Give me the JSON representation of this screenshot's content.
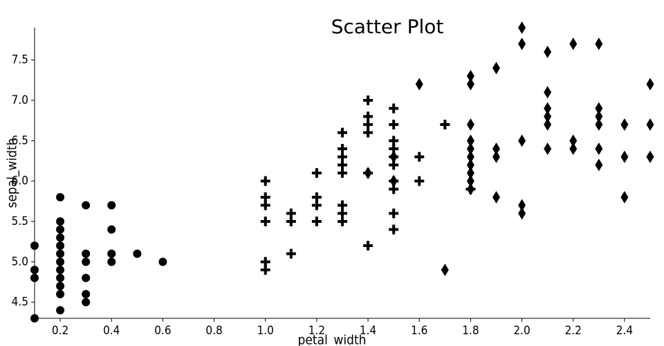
{
  "chart_data": {
    "type": "scatter",
    "title": "Scatter Plot",
    "x_label": "petal_width",
    "y_label": "sepal_width",
    "xlim": [
      0.1,
      2.5
    ],
    "xticks": [
      0.2,
      0.4,
      0.6,
      0.8,
      {
        "value": 1,
        "label": "1.0"
      },
      1.2,
      1.4,
      1.6,
      1.8,
      {
        "value": 2,
        "label": "2.0"
      },
      2.2,
      2.4
    ],
    "ylim": [
      4.3,
      7.9
    ],
    "yticks": [
      4.5,
      {
        "value": 5,
        "label": "5.0"
      },
      5.5,
      {
        "value": 6,
        "label": "6.0"
      },
      6.5,
      {
        "value": 7,
        "label": "7.0"
      },
      7.5
    ],
    "grid": false,
    "series": [
      {
        "marker": "circle",
        "color": "#000000",
        "x": [
          0.1,
          0.1,
          0.1,
          0.1,
          0.2,
          0.2,
          0.2,
          0.2,
          0.2,
          0.2,
          0.2,
          0.2,
          0.2,
          0.2,
          0.2,
          0.2,
          0.3,
          0.3,
          0.3,
          0.3,
          0.3,
          0.3,
          0.4,
          0.4,
          0.4,
          0.4,
          0.5,
          0.6
        ],
        "values": [
          4.9,
          4.8,
          4.3,
          5.2,
          5.1,
          4.9,
          4.7,
          4.6,
          5.0,
          4.4,
          5.4,
          4.8,
          5.8,
          5.2,
          5.5,
          5.3,
          4.6,
          5.1,
          5.7,
          5.0,
          4.5,
          4.8,
          5.4,
          5.7,
          5.1,
          5.0,
          5.1,
          5.0
        ]
      },
      {
        "marker": "plus",
        "color": "#000000",
        "x": [
          1.0,
          1.0,
          1.0,
          1.0,
          1.0,
          1.0,
          1.1,
          1.1,
          1.1,
          1.2,
          1.2,
          1.2,
          1.2,
          1.3,
          1.3,
          1.3,
          1.3,
          1.3,
          1.3,
          1.3,
          1.3,
          1.4,
          1.4,
          1.4,
          1.4,
          1.4,
          1.4,
          1.5,
          1.5,
          1.5,
          1.5,
          1.5,
          1.5,
          1.5,
          1.5,
          1.5,
          1.5,
          1.6,
          1.6,
          1.7,
          1.8
        ],
        "values": [
          4.9,
          5.0,
          6.0,
          5.8,
          5.7,
          5.5,
          5.6,
          5.5,
          5.1,
          6.1,
          5.8,
          5.5,
          5.7,
          5.5,
          5.7,
          6.6,
          5.6,
          6.1,
          6.4,
          6.3,
          6.2,
          7.0,
          5.2,
          6.1,
          6.7,
          6.6,
          6.8,
          6.4,
          6.9,
          6.5,
          5.9,
          5.6,
          6.2,
          6.3,
          6.0,
          5.4,
          6.7,
          6.3,
          6.0,
          6.7,
          5.9
        ]
      },
      {
        "marker": "diamond",
        "color": "#000000",
        "x": [
          1.4,
          1.5,
          1.5,
          1.6,
          1.7,
          1.8,
          1.8,
          1.8,
          1.8,
          1.8,
          1.8,
          1.8,
          1.8,
          1.8,
          1.8,
          1.9,
          1.9,
          1.9,
          1.9,
          2.0,
          2.0,
          2.0,
          2.0,
          2.0,
          2.1,
          2.1,
          2.1,
          2.1,
          2.1,
          2.1,
          2.2,
          2.2,
          2.2,
          2.3,
          2.3,
          2.3,
          2.3,
          2.3,
          2.3,
          2.4,
          2.4,
          2.4,
          2.5,
          2.5,
          2.5
        ],
        "values": [
          6.1,
          6.0,
          6.3,
          7.2,
          4.9,
          6.3,
          7.3,
          6.7,
          6.5,
          7.2,
          6.2,
          6.1,
          6.4,
          6.0,
          5.9,
          5.8,
          6.4,
          7.4,
          6.3,
          6.5,
          5.7,
          5.6,
          7.7,
          7.9,
          7.1,
          7.6,
          6.8,
          6.7,
          6.4,
          6.9,
          6.5,
          7.7,
          6.4,
          6.4,
          7.7,
          6.9,
          6.8,
          6.7,
          6.2,
          5.8,
          6.3,
          6.7,
          6.3,
          7.2,
          6.7
        ]
      }
    ]
  }
}
